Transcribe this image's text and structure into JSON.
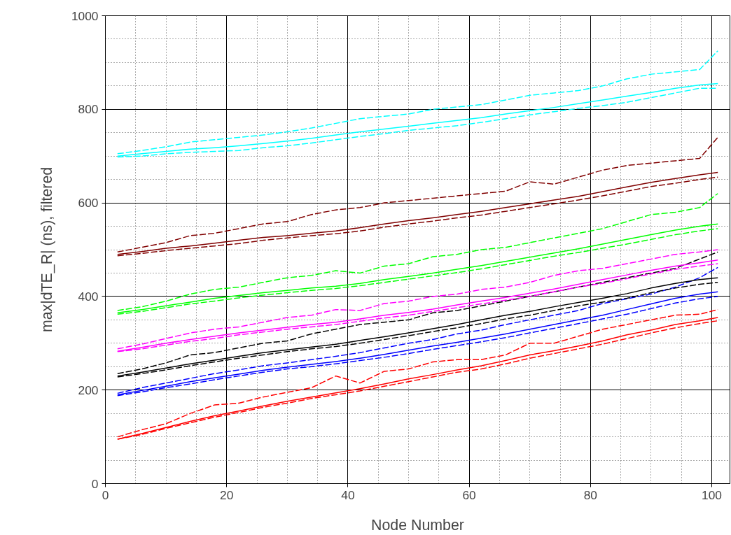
{
  "chart_data": {
    "type": "line",
    "xlabel": "Node Number",
    "ylabel": "max|dTE_R| (ns), filtered",
    "xlim": [
      0,
      103
    ],
    "ylim": [
      0,
      1000
    ],
    "xticks": [
      0,
      20,
      40,
      60,
      80,
      100
    ],
    "yticks": [
      0,
      200,
      400,
      600,
      800,
      1000
    ],
    "grid": true,
    "x": [
      2,
      6,
      10,
      14,
      18,
      22,
      26,
      30,
      34,
      38,
      42,
      46,
      50,
      54,
      58,
      62,
      66,
      70,
      74,
      78,
      82,
      86,
      90,
      94,
      98,
      101
    ],
    "series": [
      {
        "color": "#ff0000",
        "line_style": "solid",
        "values": [
          95,
          107,
          120,
          133,
          145,
          155,
          166,
          176,
          185,
          194,
          203,
          213,
          224,
          233,
          243,
          252,
          263,
          275,
          284,
          294,
          305,
          318,
          328,
          340,
          348,
          355
        ]
      },
      {
        "color": "#ff0000",
        "line_style": "dashed",
        "values": [
          100,
          115,
          128,
          150,
          168,
          172,
          185,
          195,
          205,
          230,
          215,
          240,
          245,
          260,
          265,
          265,
          275,
          300,
          300,
          315,
          330,
          340,
          350,
          360,
          362,
          372
        ]
      },
      {
        "color": "#ff0000",
        "line_style": "dashed",
        "values": [
          95,
          105,
          118,
          130,
          142,
          152,
          163,
          172,
          182,
          190,
          198,
          208,
          218,
          228,
          238,
          245,
          256,
          268,
          278,
          288,
          298,
          310,
          322,
          333,
          342,
          348
        ]
      },
      {
        "color": "#0000ff",
        "line_style": "solid",
        "values": [
          190,
          199,
          208,
          218,
          226,
          234,
          242,
          249,
          255,
          261,
          268,
          276,
          285,
          294,
          302,
          311,
          320,
          330,
          340,
          350,
          360,
          372,
          384,
          396,
          405,
          410
        ]
      },
      {
        "color": "#0000ff",
        "line_style": "dashed",
        "values": [
          193,
          205,
          215,
          225,
          235,
          243,
          252,
          258,
          265,
          272,
          280,
          290,
          300,
          308,
          320,
          328,
          340,
          350,
          360,
          370,
          385,
          395,
          405,
          420,
          440,
          462
        ]
      },
      {
        "color": "#0000ff",
        "line_style": "dashed",
        "values": [
          188,
          196,
          205,
          213,
          222,
          230,
          238,
          245,
          250,
          256,
          263,
          270,
          278,
          287,
          295,
          303,
          312,
          322,
          332,
          342,
          352,
          362,
          374,
          386,
          395,
          400
        ]
      },
      {
        "color": "#000000",
        "line_style": "solid",
        "values": [
          230,
          238,
          247,
          256,
          264,
          272,
          280,
          286,
          292,
          298,
          306,
          314,
          322,
          331,
          340,
          350,
          360,
          368,
          378,
          387,
          396,
          406,
          418,
          428,
          436,
          440
        ]
      },
      {
        "color": "#000000",
        "line_style": "dashed",
        "values": [
          235,
          245,
          258,
          275,
          280,
          290,
          300,
          305,
          320,
          330,
          340,
          345,
          350,
          365,
          370,
          380,
          390,
          400,
          410,
          420,
          430,
          440,
          450,
          460,
          480,
          495
        ]
      },
      {
        "color": "#000000",
        "line_style": "dashed",
        "values": [
          228,
          235,
          243,
          252,
          260,
          268,
          275,
          282,
          288,
          293,
          300,
          308,
          316,
          325,
          333,
          342,
          352,
          360,
          370,
          380,
          388,
          396,
          408,
          418,
          426,
          430
        ]
      },
      {
        "color": "#ff00ff",
        "line_style": "solid",
        "values": [
          283,
          291,
          300,
          308,
          315,
          322,
          328,
          334,
          340,
          345,
          352,
          360,
          366,
          373,
          382,
          390,
          398,
          407,
          416,
          426,
          436,
          446,
          456,
          465,
          472,
          478
        ]
      },
      {
        "color": "#ff00ff",
        "line_style": "dashed",
        "values": [
          288,
          298,
          310,
          322,
          330,
          335,
          345,
          355,
          360,
          372,
          370,
          385,
          390,
          400,
          405,
          415,
          420,
          430,
          445,
          455,
          460,
          470,
          480,
          490,
          495,
          500
        ]
      },
      {
        "color": "#ff00ff",
        "line_style": "dashed",
        "values": [
          282,
          288,
          296,
          304,
          310,
          318,
          324,
          330,
          335,
          340,
          347,
          354,
          360,
          368,
          376,
          384,
          392,
          400,
          410,
          420,
          428,
          438,
          448,
          458,
          465,
          470
        ]
      },
      {
        "color": "#00ff00",
        "line_style": "solid",
        "values": [
          365,
          372,
          380,
          388,
          396,
          402,
          408,
          413,
          418,
          422,
          428,
          436,
          443,
          450,
          458,
          466,
          475,
          484,
          493,
          502,
          512,
          522,
          532,
          542,
          550,
          555
        ]
      },
      {
        "color": "#00ff00",
        "line_style": "dashed",
        "values": [
          370,
          378,
          390,
          405,
          415,
          420,
          430,
          440,
          445,
          455,
          450,
          465,
          470,
          485,
          490,
          500,
          505,
          515,
          525,
          535,
          545,
          560,
          575,
          580,
          590,
          620
        ]
      },
      {
        "color": "#00ff00",
        "line_style": "dashed",
        "values": [
          362,
          368,
          376,
          384,
          390,
          397,
          403,
          408,
          413,
          417,
          423,
          430,
          437,
          444,
          451,
          459,
          468,
          477,
          486,
          494,
          503,
          512,
          522,
          532,
          540,
          545
        ]
      },
      {
        "color": "#800000",
        "line_style": "solid",
        "values": [
          490,
          496,
          503,
          508,
          514,
          520,
          526,
          530,
          535,
          540,
          547,
          555,
          562,
          568,
          575,
          582,
          590,
          598,
          606,
          614,
          624,
          634,
          644,
          652,
          660,
          665
        ]
      },
      {
        "color": "#800000",
        "line_style": "dashed",
        "values": [
          495,
          505,
          515,
          530,
          535,
          545,
          555,
          560,
          575,
          585,
          590,
          600,
          605,
          610,
          615,
          620,
          625,
          645,
          640,
          655,
          670,
          680,
          685,
          690,
          695,
          740
        ]
      },
      {
        "color": "#800000",
        "line_style": "dashed",
        "values": [
          487,
          492,
          498,
          503,
          508,
          513,
          520,
          525,
          530,
          534,
          540,
          548,
          555,
          561,
          568,
          574,
          582,
          590,
          598,
          606,
          615,
          625,
          635,
          642,
          650,
          655
        ]
      },
      {
        "color": "#00ffff",
        "line_style": "solid",
        "values": [
          700,
          705,
          710,
          715,
          718,
          722,
          727,
          732,
          738,
          745,
          752,
          758,
          764,
          770,
          776,
          782,
          790,
          797,
          804,
          812,
          820,
          828,
          836,
          845,
          852,
          855
        ]
      },
      {
        "color": "#00ffff",
        "line_style": "dashed",
        "values": [
          705,
          712,
          720,
          730,
          735,
          740,
          745,
          752,
          760,
          770,
          780,
          785,
          790,
          800,
          805,
          810,
          820,
          830,
          835,
          840,
          850,
          865,
          875,
          880,
          885,
          925
        ]
      },
      {
        "color": "#00ffff",
        "line_style": "dashed",
        "values": [
          698,
          700,
          705,
          708,
          710,
          712,
          718,
          722,
          728,
          735,
          742,
          748,
          755,
          760,
          765,
          772,
          780,
          788,
          795,
          802,
          808,
          815,
          825,
          835,
          845,
          845
        ]
      }
    ]
  }
}
